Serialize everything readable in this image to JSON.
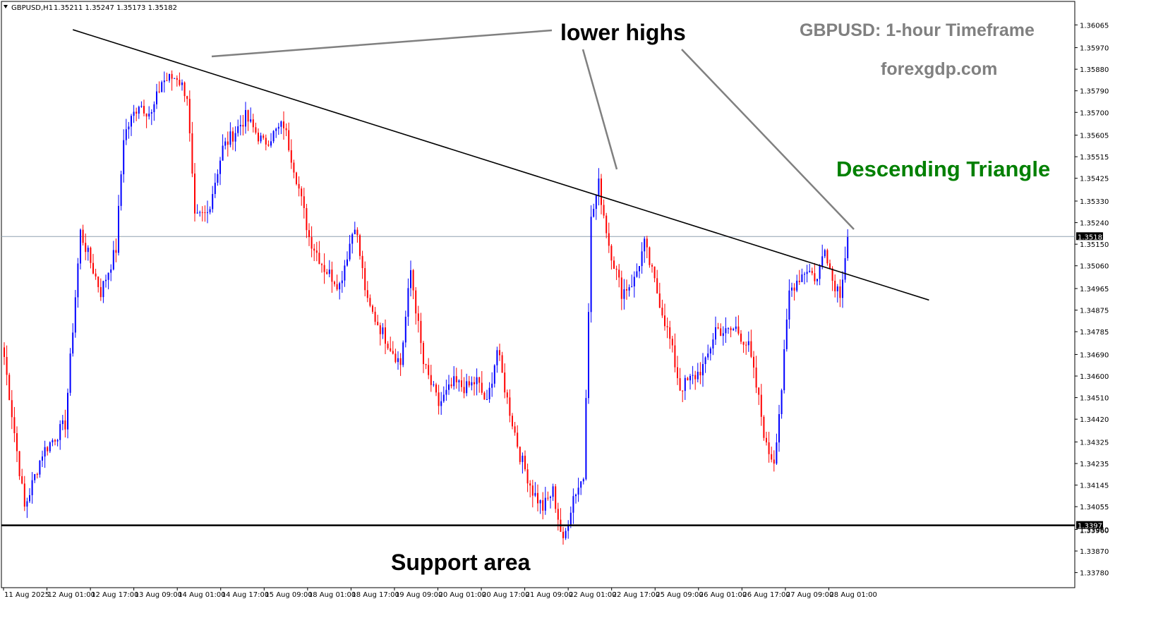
{
  "header": {
    "symbol_label": "GBPUSD,H1",
    "ohlc_label": "1.35211 1.35247 1.35173 1.35182"
  },
  "colors": {
    "bull": "#0000ff",
    "bear": "#ff0000",
    "trendline": "#000000",
    "pointer": "#808080",
    "bid_line": "#8fa0b0",
    "support": "#000000",
    "title_gray": "#808080",
    "triangle_green": "#008000"
  },
  "annotations": {
    "lower_highs": "lower highs",
    "title": "GBPUSD: 1-hour Timeframe",
    "site": "forexgdp.com",
    "pattern": "Descending Triangle",
    "support": "Support area"
  },
  "chart_data": {
    "type": "candlestick",
    "symbol": "GBPUSD",
    "timeframe": "H1",
    "ylim": [
      1.3372,
      1.3616
    ],
    "y_ticks": [
      "1.36065",
      "1.35970",
      "1.35880",
      "1.35790",
      "1.35700",
      "1.35605",
      "1.35515",
      "1.35425",
      "1.35330",
      "1.35240",
      "1.35150",
      "1.35060",
      "1.34965",
      "1.34875",
      "1.34785",
      "1.34690",
      "1.34600",
      "1.34510",
      "1.34420",
      "1.34325",
      "1.34235",
      "1.34145",
      "1.34055",
      "1.33960",
      "1.33870",
      "1.33780"
    ],
    "x_ticks": [
      "11 Aug 2025",
      "12 Aug 01:00",
      "12 Aug 17:00",
      "13 Aug 09:00",
      "14 Aug 01:00",
      "14 Aug 17:00",
      "15 Aug 09:00",
      "18 Aug 01:00",
      "18 Aug 17:00",
      "19 Aug 09:00",
      "20 Aug 01:00",
      "20 Aug 17:00",
      "21 Aug 09:00",
      "22 Aug 01:00",
      "22 Aug 17:00",
      "25 Aug 09:00",
      "26 Aug 01:00",
      "26 Aug 17:00",
      "27 Aug 09:00",
      "28 Aug 01:00"
    ],
    "current_price": "1.35182",
    "support_price": "1.33977",
    "support_label_below": "1.33960",
    "trendline": {
      "start": {
        "bar": 27,
        "price": 1.36045
      },
      "end": {
        "bar": 364,
        "price": 1.34917
      }
    },
    "anchors": [
      {
        "bar": 0,
        "price": 1.3468
      },
      {
        "bar": 8,
        "price": 1.3405
      },
      {
        "bar": 15,
        "price": 1.3428
      },
      {
        "bar": 24,
        "price": 1.344
      },
      {
        "bar": 30,
        "price": 1.352
      },
      {
        "bar": 38,
        "price": 1.3495
      },
      {
        "bar": 44,
        "price": 1.3513
      },
      {
        "bar": 47,
        "price": 1.356
      },
      {
        "bar": 53,
        "price": 1.3574
      },
      {
        "bar": 58,
        "price": 1.3569
      },
      {
        "bar": 62,
        "price": 1.3583
      },
      {
        "bar": 68,
        "price": 1.3585
      },
      {
        "bar": 72,
        "price": 1.3577
      },
      {
        "bar": 75,
        "price": 1.3525
      },
      {
        "bar": 80,
        "price": 1.3528
      },
      {
        "bar": 86,
        "price": 1.3555
      },
      {
        "bar": 95,
        "price": 1.3568
      },
      {
        "bar": 102,
        "price": 1.3557
      },
      {
        "bar": 110,
        "price": 1.3565
      },
      {
        "bar": 115,
        "price": 1.3543
      },
      {
        "bar": 120,
        "price": 1.3518
      },
      {
        "bar": 126,
        "price": 1.3505
      },
      {
        "bar": 132,
        "price": 1.3498
      },
      {
        "bar": 138,
        "price": 1.3524
      },
      {
        "bar": 143,
        "price": 1.349
      },
      {
        "bar": 150,
        "price": 1.3476
      },
      {
        "bar": 156,
        "price": 1.3465
      },
      {
        "bar": 160,
        "price": 1.3504
      },
      {
        "bar": 165,
        "price": 1.3465
      },
      {
        "bar": 171,
        "price": 1.3448
      },
      {
        "bar": 177,
        "price": 1.3457
      },
      {
        "bar": 182,
        "price": 1.3455
      },
      {
        "bar": 186,
        "price": 1.3458
      },
      {
        "bar": 190,
        "price": 1.3448
      },
      {
        "bar": 194,
        "price": 1.3471
      },
      {
        "bar": 198,
        "price": 1.345
      },
      {
        "bar": 203,
        "price": 1.3427
      },
      {
        "bar": 208,
        "price": 1.3412
      },
      {
        "bar": 212,
        "price": 1.3405
      },
      {
        "bar": 216,
        "price": 1.3412
      },
      {
        "bar": 220,
        "price": 1.339
      },
      {
        "bar": 224,
        "price": 1.341
      },
      {
        "bar": 228,
        "price": 1.3418
      },
      {
        "bar": 231,
        "price": 1.3525
      },
      {
        "bar": 234,
        "price": 1.354
      },
      {
        "bar": 238,
        "price": 1.3515
      },
      {
        "bar": 243,
        "price": 1.3495
      },
      {
        "bar": 248,
        "price": 1.35
      },
      {
        "bar": 252,
        "price": 1.3515
      },
      {
        "bar": 257,
        "price": 1.3495
      },
      {
        "bar": 262,
        "price": 1.3475
      },
      {
        "bar": 266,
        "price": 1.3455
      },
      {
        "bar": 272,
        "price": 1.346
      },
      {
        "bar": 276,
        "price": 1.3465
      },
      {
        "bar": 280,
        "price": 1.348
      },
      {
        "bar": 284,
        "price": 1.3478
      },
      {
        "bar": 288,
        "price": 1.348
      },
      {
        "bar": 293,
        "price": 1.3472
      },
      {
        "bar": 297,
        "price": 1.345
      },
      {
        "bar": 300,
        "price": 1.343
      },
      {
        "bar": 303,
        "price": 1.3425
      },
      {
        "bar": 306,
        "price": 1.3455
      },
      {
        "bar": 309,
        "price": 1.3495
      },
      {
        "bar": 312,
        "price": 1.35
      },
      {
        "bar": 316,
        "price": 1.3505
      },
      {
        "bar": 320,
        "price": 1.35
      },
      {
        "bar": 323,
        "price": 1.3515
      },
      {
        "bar": 326,
        "price": 1.35
      },
      {
        "bar": 329,
        "price": 1.3495
      },
      {
        "bar": 332,
        "price": 1.3518
      }
    ]
  }
}
